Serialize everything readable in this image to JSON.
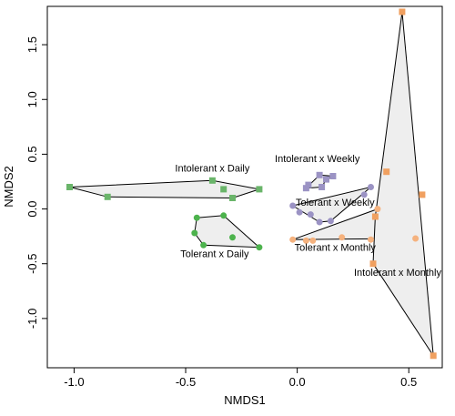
{
  "chart_data": {
    "type": "scatter",
    "xlabel": "NMDS1",
    "ylabel": "NMDS2",
    "xlim": [
      -1.12,
      0.65
    ],
    "ylim": [
      -1.45,
      1.85
    ],
    "x_ticks": [
      -1.0,
      -0.5,
      0.0,
      0.5
    ],
    "x_tick_labels": [
      "-1.0",
      "-0.5",
      "0.0",
      "0.5"
    ],
    "y_ticks": [
      -1.0,
      -0.5,
      0.0,
      0.5,
      1.0,
      1.5
    ],
    "y_tick_labels": [
      "-1.0",
      "-0.5",
      "0.0",
      "0.5",
      "1.0",
      "1.5"
    ],
    "hull_fill": "#eeeeee",
    "hull_stroke": "#000000",
    "groups": [
      {
        "name": "Intolerant x Daily",
        "color": "#6ab56a",
        "marker": "square",
        "points": [
          [
            -1.02,
            0.2
          ],
          [
            -0.85,
            0.11
          ],
          [
            -0.38,
            0.26
          ],
          [
            -0.33,
            0.18
          ],
          [
            -0.29,
            0.1
          ],
          [
            -0.17,
            0.18
          ]
        ],
        "hull": [
          [
            -1.02,
            0.2
          ],
          [
            -0.85,
            0.11
          ],
          [
            -0.29,
            0.1
          ],
          [
            -0.17,
            0.18
          ],
          [
            -0.38,
            0.26
          ]
        ],
        "label_at": [
          -0.38,
          0.34
        ]
      },
      {
        "name": "Tolerant x Daily",
        "color": "#4db34d",
        "marker": "circle",
        "points": [
          [
            -0.45,
            -0.08
          ],
          [
            -0.46,
            -0.22
          ],
          [
            -0.42,
            -0.33
          ],
          [
            -0.33,
            -0.06
          ],
          [
            -0.29,
            -0.26
          ],
          [
            -0.17,
            -0.35
          ]
        ],
        "hull": [
          [
            -0.45,
            -0.08
          ],
          [
            -0.33,
            -0.06
          ],
          [
            -0.17,
            -0.35
          ],
          [
            -0.42,
            -0.33
          ],
          [
            -0.46,
            -0.22
          ]
        ],
        "label_at": [
          -0.37,
          -0.44
        ]
      },
      {
        "name": "Intolerant x Weekly",
        "color": "#9b93c4",
        "marker": "square",
        "points": [
          [
            0.04,
            0.19
          ],
          [
            0.05,
            0.22
          ],
          [
            0.1,
            0.31
          ],
          [
            0.11,
            0.2
          ],
          [
            0.13,
            0.27
          ],
          [
            0.16,
            0.3
          ]
        ],
        "hull": [
          [
            0.04,
            0.19
          ],
          [
            0.11,
            0.2
          ],
          [
            0.13,
            0.27
          ],
          [
            0.16,
            0.3
          ],
          [
            0.1,
            0.31
          ]
        ],
        "label_at": [
          0.09,
          0.43
        ]
      },
      {
        "name": "Tolerant x Weekly",
        "color": "#9b93c4",
        "marker": "circle",
        "points": [
          [
            -0.02,
            0.03
          ],
          [
            0.01,
            -0.03
          ],
          [
            0.06,
            -0.05
          ],
          [
            0.1,
            -0.12
          ],
          [
            0.15,
            -0.11
          ],
          [
            0.3,
            0.13
          ],
          [
            0.33,
            0.2
          ]
        ],
        "hull": [
          [
            -0.02,
            0.03
          ],
          [
            0.1,
            -0.12
          ],
          [
            0.15,
            -0.11
          ],
          [
            0.33,
            0.2
          ]
        ],
        "label_at": [
          0.17,
          0.03
        ]
      },
      {
        "name": "Tolerant x Monthly",
        "color": "#f5b27e",
        "marker": "circle",
        "points": [
          [
            -0.02,
            -0.28
          ],
          [
            0.04,
            -0.29
          ],
          [
            0.07,
            -0.29
          ],
          [
            0.2,
            -0.26
          ],
          [
            0.33,
            -0.28
          ],
          [
            0.36,
            0.0
          ],
          [
            0.53,
            -0.27
          ]
        ],
        "hull": [
          [
            -0.02,
            -0.28
          ],
          [
            0.36,
            0.0
          ],
          [
            0.53,
            -0.27
          ]
        ],
        "label_at": [
          0.17,
          -0.38
        ]
      },
      {
        "name": "Intolerant x Monthly",
        "color": "#f0a060",
        "marker": "square",
        "points": [
          [
            0.34,
            -0.5
          ],
          [
            0.35,
            -0.07
          ],
          [
            0.4,
            0.34
          ],
          [
            0.47,
            1.8
          ],
          [
            0.56,
            0.13
          ],
          [
            0.61,
            -1.34
          ]
        ],
        "hull": [
          [
            0.34,
            -0.5
          ],
          [
            0.35,
            -0.07
          ],
          [
            0.47,
            1.8
          ],
          [
            0.61,
            -1.34
          ]
        ],
        "label_at": [
          0.45,
          -0.61
        ]
      }
    ]
  }
}
